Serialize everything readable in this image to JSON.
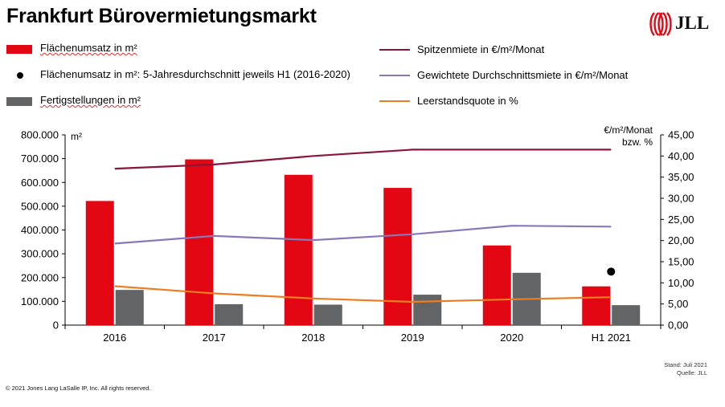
{
  "title": "Frankfurt Bürovermietungsmarkt",
  "logo": {
    "text": "JLL",
    "icon": "jll-logo-icon",
    "color": "#e30613"
  },
  "legend": {
    "flaechenumsatz": "Flächenumsatz in m²",
    "durchschnitt": "Flächenumsatz in m²: 5-Jahresdurchschnitt jeweils H1 (2016-2020)",
    "fertigstellungen": "Fertigstellungen in m²",
    "spitzenmiete": "Spitzenmiete in €/m²/Monat",
    "gewichtete": "Gewichtete Durchschnittsmiete in €/m²/Monat",
    "leerstand": "Leerstandsquote in %"
  },
  "footnote": {
    "stand": "Stand: Juli 2021",
    "quelle": "Quelle: JLL"
  },
  "copyright": "© 2021 Jones Lang LaSalle IP, Inc. All rights reserved.",
  "chart_data": {
    "type": "bar",
    "categories": [
      "2016",
      "2017",
      "2018",
      "2019",
      "2020",
      "H1 2021"
    ],
    "left_axis": {
      "label": "m²",
      "range": [
        0,
        800000
      ],
      "ticks": [
        "0",
        "100.000",
        "200.000",
        "300.000",
        "400.000",
        "500.000",
        "600.000",
        "700.000",
        "800.000"
      ]
    },
    "right_axis": {
      "label_line1": "€/m²/Monat",
      "label_line2": "bzw. %",
      "range": [
        0,
        45
      ],
      "ticks": [
        "0,00",
        "5,00",
        "10,00",
        "15,00",
        "20,00",
        "25,00",
        "30,00",
        "35,00",
        "40,00",
        "45,00"
      ]
    },
    "series": [
      {
        "name": "Flächenumsatz in m²",
        "kind": "bar",
        "axis": "left",
        "color": "#e30613",
        "values": [
          522000,
          697000,
          632000,
          577000,
          335000,
          163000
        ]
      },
      {
        "name": "Fertigstellungen in m²",
        "kind": "bar",
        "axis": "left",
        "color": "#636466",
        "values": [
          148000,
          88000,
          86000,
          128000,
          220000,
          84000
        ]
      },
      {
        "name": "Flächenumsatz in m²: 5-Jahresdurchschnitt jeweils H1 (2016-2020)",
        "kind": "point",
        "axis": "left",
        "color": "#000000",
        "values": [
          null,
          null,
          null,
          null,
          null,
          225000
        ]
      },
      {
        "name": "Spitzenmiete in €/m²/Monat",
        "kind": "line",
        "axis": "right",
        "color": "#8b1538",
        "values": [
          37.0,
          38.0,
          40.0,
          41.5,
          41.5,
          41.5
        ]
      },
      {
        "name": "Gewichtete Durchschnittsmiete in €/m²/Monat",
        "kind": "line",
        "axis": "right",
        "color": "#8878b8",
        "values": [
          19.3,
          21.1,
          20.1,
          21.5,
          23.5,
          23.3
        ]
      },
      {
        "name": "Leerstandsquote in %",
        "kind": "line",
        "axis": "right",
        "color": "#ed7d22",
        "values": [
          9.2,
          7.5,
          6.3,
          5.5,
          6.1,
          6.6
        ]
      }
    ],
    "grid": false,
    "legend_position": "top"
  }
}
